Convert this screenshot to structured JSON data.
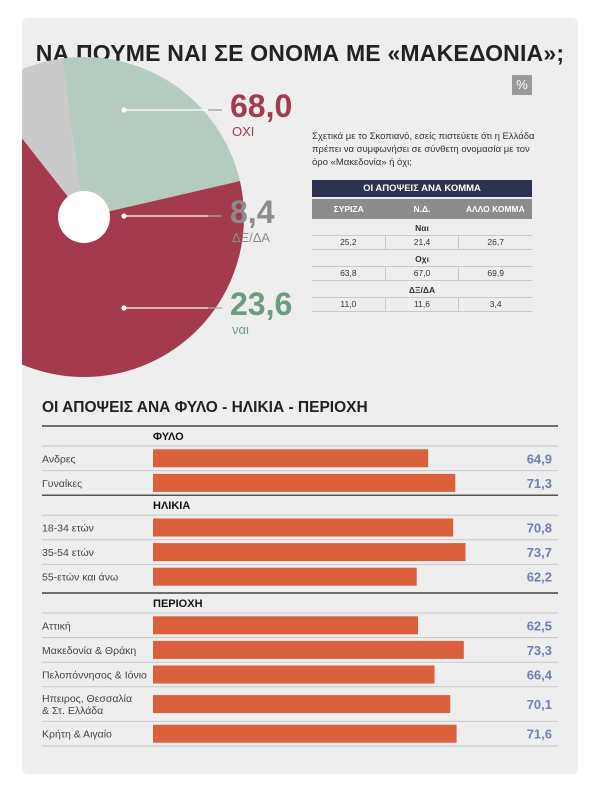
{
  "title": "ΝΑ ΠΟΥΜΕ ΝΑΙ ΣΕ ΟΝΟΜΑ ΜΕ «ΜΑΚΕΔΟΝΙΑ»;",
  "unit_badge": "%",
  "question": "Σχετικά με το Σκοπιανό, εσείς πιστεύετε ότι η Ελλάδα πρέπει να συμφωνήσει σε σύνθετη ονομασία με τον όρο «Μακεδονία» ή όχι;",
  "chart_data": [
    {
      "type": "pie",
      "labels": [
        "ΟΧΙ",
        "ΔΞ/ΔΑ",
        "ναι"
      ],
      "values": [
        68.0,
        8.4,
        23.6
      ],
      "value_labels": [
        "68,0",
        "8,4",
        "23,6"
      ],
      "colors": [
        "#a33a4e",
        "#cacaca",
        "#b4cbbf"
      ],
      "label_colors": [
        "#a33a4e",
        "#8c8c8c",
        "#6b9c7f"
      ]
    },
    {
      "type": "table",
      "title": "ΟΙ ΑΠΟΨΕΙΣ ΑΝΑ ΚΟΜΜΑ",
      "columns": [
        "ΣΥΡΙΖΑ",
        "Ν.Δ.",
        "ΑΛΛΟ ΚΟΜΜΑ"
      ],
      "groups": [
        {
          "label": "Ναι",
          "values": [
            "25,2",
            "21,4",
            "26,7"
          ]
        },
        {
          "label": "Οχι",
          "values": [
            "63,8",
            "67,0",
            "69,9"
          ]
        },
        {
          "label": "ΔΞ/ΔΑ",
          "values": [
            "11,0",
            "11,6",
            "3,4"
          ]
        }
      ]
    },
    {
      "type": "bar",
      "title": "ΟΙ ΑΠΟΨΕΙΣ ΑΝΑ ΦΥΛΟ - ΗΛΙΚΙΑ - ΠΕΡΙΟΧΗ",
      "orientation": "horizontal",
      "xlim": [
        0,
        75
      ],
      "bar_color": "#d9603b",
      "value_color": "#6f7fb3",
      "groups": [
        {
          "label": "ΦΥΛΟ",
          "items": [
            {
              "label": "Ανδρες",
              "value": 64.9,
              "value_label": "64,9"
            },
            {
              "label": "Γυναίκες",
              "value": 71.3,
              "value_label": "71,3"
            }
          ]
        },
        {
          "label": "ΗΛΙΚΙΑ",
          "items": [
            {
              "label": "18-34 ετών",
              "value": 70.8,
              "value_label": "70,8"
            },
            {
              "label": "35-54 ετών",
              "value": 73.7,
              "value_label": "73,7"
            },
            {
              "label": "55-ετών και άνω",
              "value": 62.2,
              "value_label": "62,2"
            }
          ]
        },
        {
          "label": "ΠΕΡΙΟΧΗ",
          "items": [
            {
              "label": "Αττική",
              "value": 62.5,
              "value_label": "62,5"
            },
            {
              "label": "Μακεδονία & Θράκη",
              "value": 73.3,
              "value_label": "73,3"
            },
            {
              "label": "Πελοπόννησος & Ιόνιο",
              "value": 66.4,
              "value_label": "66,4"
            },
            {
              "label": "Ηπειρος, Θεσσαλία\n& Στ. Ελλάδα",
              "value": 70.1,
              "value_label": "70,1"
            },
            {
              "label": "Κρήτη & Αιγαίο",
              "value": 71.6,
              "value_label": "71,6"
            }
          ]
        }
      ]
    }
  ]
}
